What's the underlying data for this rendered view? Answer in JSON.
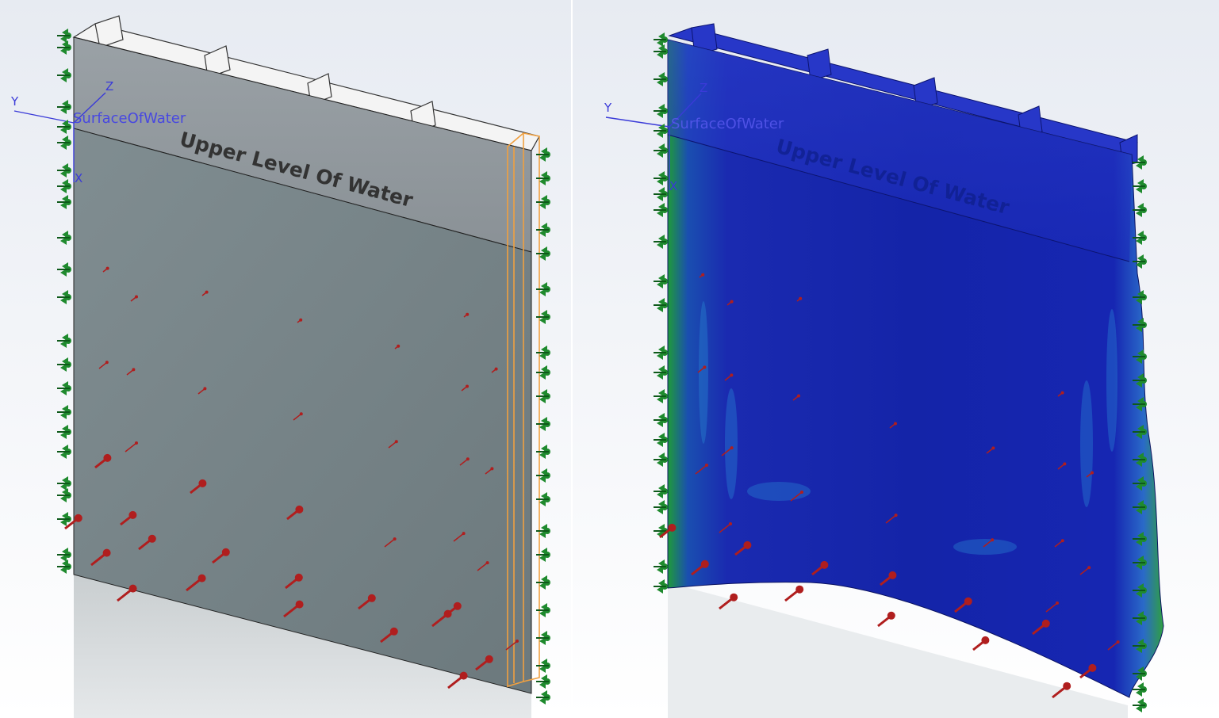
{
  "viewports": {
    "left": {
      "mode": "model",
      "plane_label": "SurfaceOfWater",
      "annotation": "Upper Level Of Water",
      "axes": {
        "y": "Y",
        "z": "Z",
        "x": "X"
      }
    },
    "right": {
      "mode": "stress-result",
      "plane_label": "SurfaceOfWater",
      "annotation": "Upper Level Of Water",
      "axes": {
        "y": "Y",
        "z": "Z",
        "x": "X"
      }
    }
  },
  "colors": {
    "plate_gray": "#7c8a8e",
    "rib_white": "#f2f2f2",
    "axis_blue": "#3a3ad8",
    "fixture_green": "#1f8a2e",
    "load_red": "#b01e1e",
    "result_blue": "#1a2fb8",
    "selection_orange": "#f0a040"
  },
  "icons": {
    "fixture": "fixture-icon",
    "pressure_arrow": "pressure-arrow-icon",
    "triad": "axis-triad-icon"
  }
}
